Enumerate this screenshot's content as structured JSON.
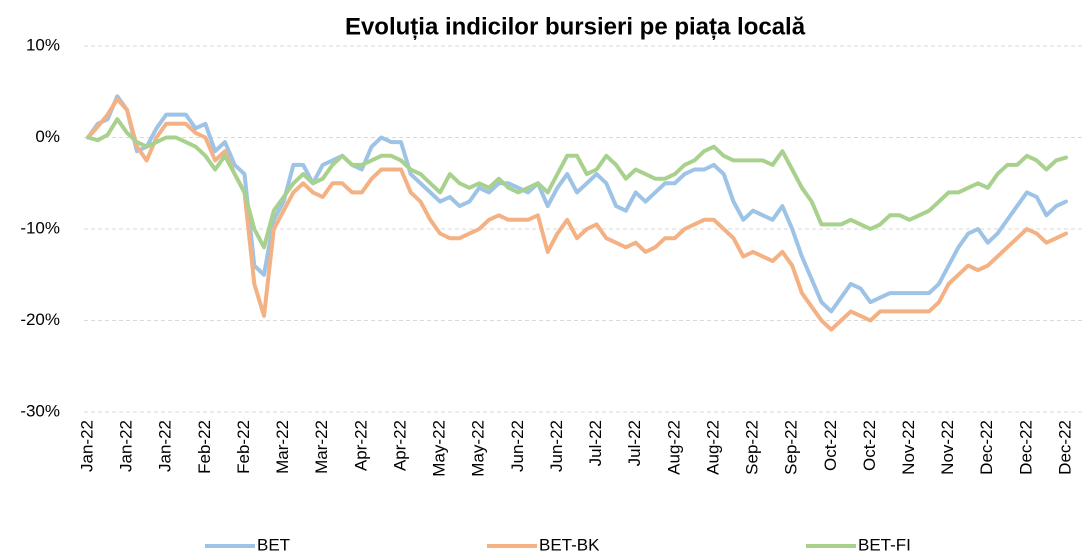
{
  "chart_data": {
    "type": "line",
    "title": "Evoluția indicilor bursieri pe piața locală",
    "categories": [
      "Jan-22",
      null,
      null,
      null,
      "Jan-22",
      null,
      null,
      null,
      "Jan-22",
      null,
      null,
      null,
      "Feb-22",
      null,
      null,
      null,
      "Feb-22",
      null,
      null,
      null,
      "Mar-22",
      null,
      null,
      null,
      "Mar-22",
      null,
      null,
      null,
      "Apr-22",
      null,
      null,
      null,
      "Apr-22",
      null,
      null,
      null,
      "May-22",
      null,
      null,
      null,
      "May-22",
      null,
      null,
      null,
      "Jun-22",
      null,
      null,
      null,
      "Jun-22",
      null,
      null,
      null,
      "Jul-22",
      null,
      null,
      null,
      "Jul-22",
      null,
      null,
      null,
      "Aug-22",
      null,
      null,
      null,
      "Aug-22",
      null,
      null,
      null,
      "Sep-22",
      null,
      null,
      null,
      "Sep-22",
      null,
      null,
      null,
      "Oct-22",
      null,
      null,
      null,
      "Oct-22",
      null,
      null,
      null,
      "Nov-22",
      null,
      null,
      null,
      "Nov-22",
      null,
      null,
      null,
      "Dec-22",
      null,
      null,
      null,
      "Dec-22",
      null,
      null,
      null,
      "Dec-22"
    ],
    "series": [
      {
        "name": "BET",
        "color": "#9dc3e6",
        "values": [
          0,
          1.5,
          2,
          4.5,
          3,
          -1.5,
          -1,
          1,
          2.5,
          2.5,
          2.5,
          1,
          1.5,
          -1.5,
          -0.5,
          -3,
          -4,
          -14,
          -15,
          -9,
          -7,
          -3,
          -3,
          -5,
          -3,
          -2.5,
          -2,
          -3,
          -3.5,
          -1,
          0,
          -0.5,
          -0.5,
          -4,
          -5,
          -6,
          -7,
          -6.5,
          -7.5,
          -7,
          -5.5,
          -6,
          -5,
          -5,
          -5.5,
          -6,
          -5,
          -7.5,
          -5.5,
          -4,
          -6,
          -5,
          -4,
          -5,
          -7.5,
          -8,
          -6,
          -7,
          -6,
          -5,
          -5,
          -4,
          -3.5,
          -3.5,
          -3,
          -4,
          -7,
          -9,
          -8,
          -8.5,
          -9,
          -7.5,
          -10,
          -13,
          -15.5,
          -18,
          -19,
          -17.5,
          -16,
          -16.5,
          -18,
          -17.5,
          -17,
          -17,
          -17,
          -17,
          -17,
          -16,
          -14,
          -12,
          -10.5,
          -10,
          -11.5,
          -10.5,
          -9,
          -7.5,
          -6,
          -6.5,
          -8.5,
          -7.5,
          -7
        ]
      },
      {
        "name": "BET-BK",
        "color": "#f4b183",
        "values": [
          0,
          1.2,
          2.5,
          4.2,
          3,
          -1,
          -2.5,
          0,
          1.5,
          1.5,
          1.5,
          0.5,
          0,
          -2.5,
          -1.5,
          -4,
          -6,
          -16,
          -19.5,
          -10,
          -8,
          -6,
          -5,
          -6,
          -6.5,
          -5,
          -5,
          -6,
          -6,
          -4.5,
          -3.5,
          -3.5,
          -3.5,
          -6,
          -7,
          -9,
          -10.5,
          -11,
          -11,
          -10.5,
          -10,
          -9,
          -8.5,
          -9,
          -9,
          -9,
          -8.5,
          -12.5,
          -10.5,
          -9,
          -11,
          -10,
          -9.5,
          -11,
          -11.5,
          -12,
          -11.5,
          -12.5,
          -12,
          -11,
          -11,
          -10,
          -9.5,
          -9,
          -9,
          -10,
          -11,
          -13,
          -12.5,
          -13,
          -13.5,
          -12.5,
          -14,
          -17,
          -18.5,
          -20,
          -21,
          -20,
          -19,
          -19.5,
          -20,
          -19,
          -19,
          -19,
          -19,
          -19,
          -19,
          -18,
          -16,
          -15,
          -14,
          -14.5,
          -14,
          -13,
          -12,
          -11,
          -10,
          -10.5,
          -11.5,
          -11,
          -10.5
        ]
      },
      {
        "name": "BET-FI",
        "color": "#a9d18e",
        "values": [
          0,
          -0.3,
          0.3,
          2,
          0.5,
          -0.5,
          -1,
          -0.5,
          0,
          0,
          -0.5,
          -1,
          -2,
          -3.5,
          -2,
          -4,
          -6,
          -10,
          -12,
          -8,
          -6.5,
          -5,
          -4,
          -5,
          -4.5,
          -3,
          -2,
          -3,
          -3,
          -2.5,
          -2,
          -2,
          -2.5,
          -3.5,
          -4,
          -5,
          -6,
          -4,
          -5,
          -5.5,
          -5,
          -5.5,
          -4.5,
          -5.5,
          -6,
          -5.5,
          -5,
          -6,
          -4,
          -2,
          -2,
          -4,
          -3.5,
          -2,
          -3,
          -4.5,
          -3.5,
          -4,
          -4.5,
          -4.5,
          -4,
          -3,
          -2.5,
          -1.5,
          -1,
          -2,
          -2.5,
          -2.5,
          -2.5,
          -2.5,
          -3,
          -1.5,
          -3.5,
          -5.5,
          -7,
          -9.5,
          -9.5,
          -9.5,
          -9,
          -9.5,
          -10,
          -9.5,
          -8.5,
          -8.5,
          -9,
          -8.5,
          -8,
          -7,
          -6,
          -6,
          -5.5,
          -5,
          -5.5,
          -4,
          -3,
          -3,
          -2,
          -2.5,
          -3.5,
          -2.5,
          -2.2
        ]
      }
    ],
    "ylim": [
      -30,
      10
    ],
    "yticks": [
      {
        "value": -30,
        "label": "-30%"
      },
      {
        "value": -20,
        "label": "-20%"
      },
      {
        "value": -10,
        "label": "-10%"
      },
      {
        "value": 0,
        "label": "0%"
      },
      {
        "value": 10,
        "label": "10%"
      }
    ],
    "grid": true,
    "legend": "bottom"
  }
}
